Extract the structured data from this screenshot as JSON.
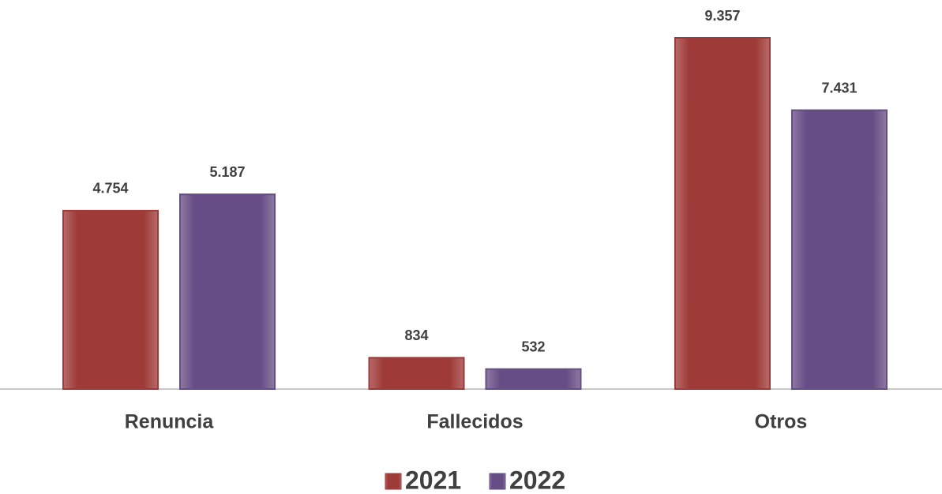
{
  "chart_data": {
    "type": "bar",
    "categories": [
      "Renuncia",
      "Fallecidos",
      "Otros"
    ],
    "series": [
      {
        "name": "2021",
        "color": "#9e3a38",
        "values": [
          4754,
          834,
          9357
        ],
        "value_labels": [
          "4.754",
          "834",
          "9.357"
        ]
      },
      {
        "name": "2022",
        "color": "#674d85",
        "values": [
          5187,
          532,
          7431
        ],
        "value_labels": [
          "5.187",
          "532",
          "7.431"
        ]
      }
    ]
  }
}
